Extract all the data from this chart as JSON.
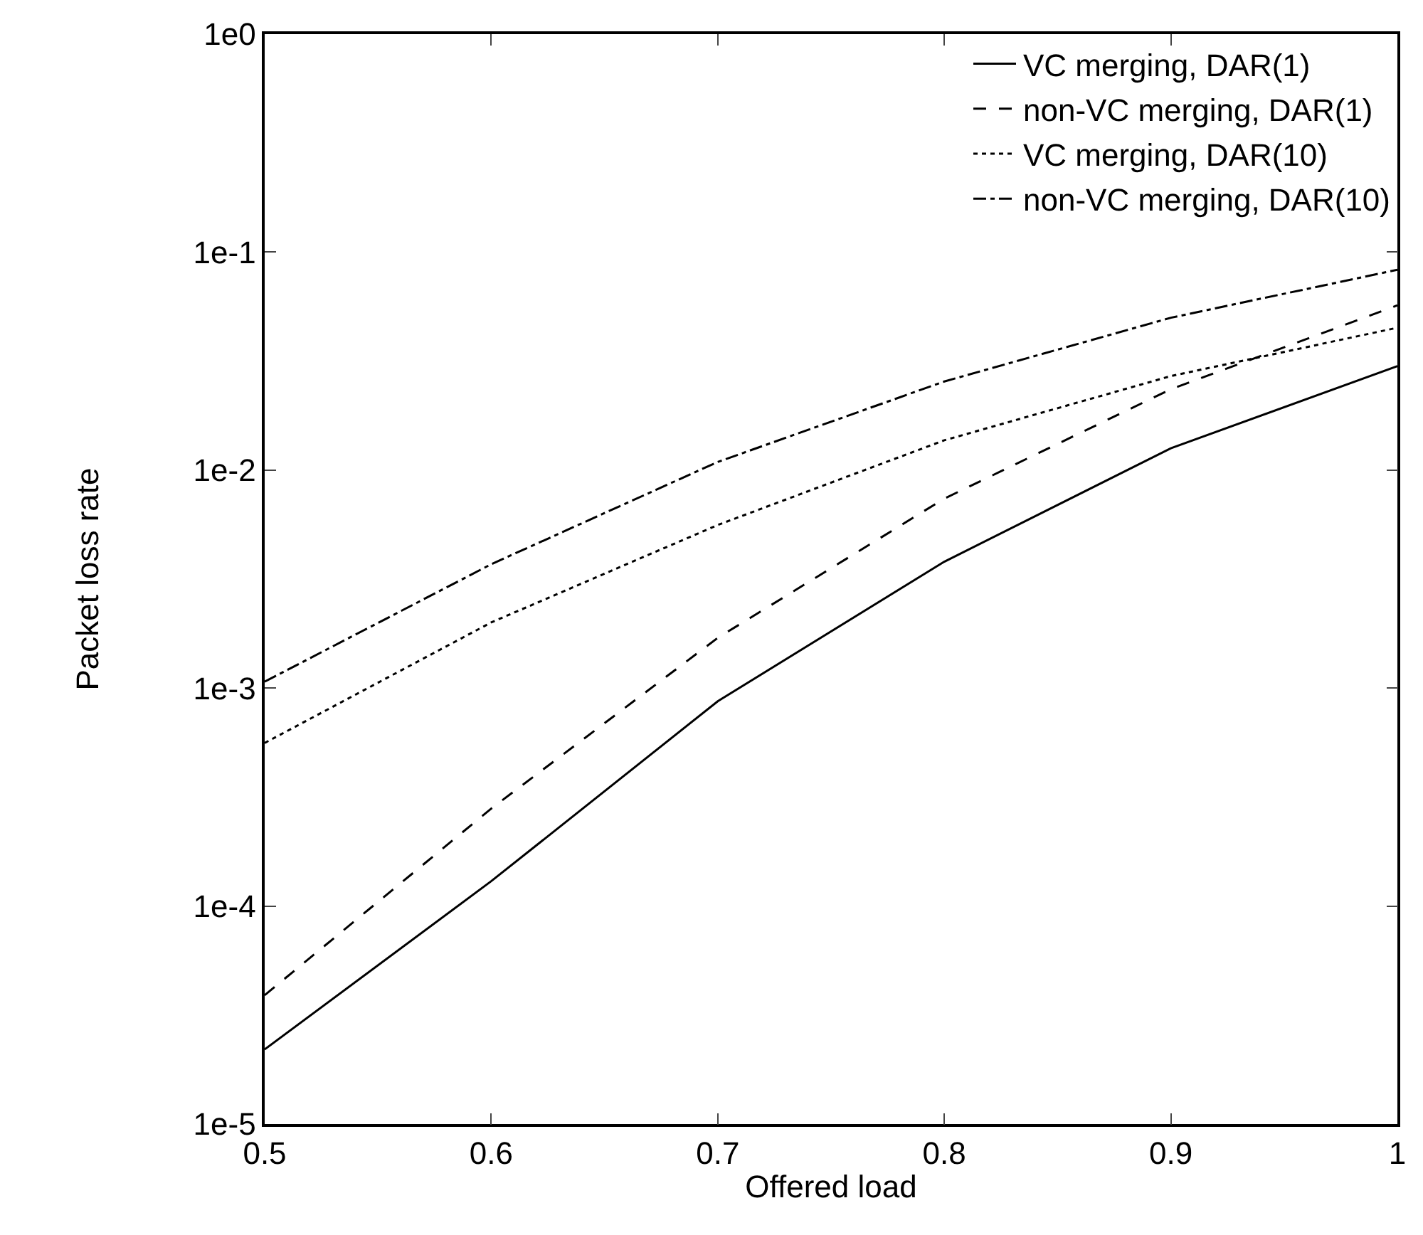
{
  "chart_data": {
    "type": "line",
    "xlabel": "Offered load",
    "ylabel": "Packet loss rate",
    "x": [
      0.5,
      0.6,
      0.7,
      0.8,
      0.9,
      1
    ],
    "series": [
      {
        "name": "VC merging, DAR(1)",
        "color": "#000000",
        "line_style": "solid",
        "values": [
          2.2e-05,
          0.00013,
          0.00087,
          0.0038,
          0.0126,
          0.03
        ]
      },
      {
        "name": "non-VC merging, DAR(1)",
        "color": "#000000",
        "line_style": "dashed",
        "values": [
          3.9e-05,
          0.00028,
          0.0017,
          0.0074,
          0.0235,
          0.057
        ]
      },
      {
        "name": "VC merging, DAR(10)",
        "color": "#000000",
        "line_style": "dotted",
        "values": [
          0.00056,
          0.002,
          0.0056,
          0.0137,
          0.027,
          0.045
        ]
      },
      {
        "name": "non-VC merging, DAR(10)",
        "color": "#000000",
        "line_style": "dashdot",
        "values": [
          0.00107,
          0.0037,
          0.0109,
          0.0255,
          0.05,
          0.083
        ]
      }
    ],
    "xlim": [
      0.5,
      1
    ],
    "xticks": [
      0.5,
      0.6,
      0.7,
      0.8,
      0.9,
      1
    ],
    "ylim": [
      1e-05,
      1
    ],
    "yticks": [
      {
        "value": 1e-05,
        "label": "1e-5"
      },
      {
        "value": 0.0001,
        "label": "1e-4"
      },
      {
        "value": 0.001,
        "label": "1e-3"
      },
      {
        "value": 0.01,
        "label": "1e-2"
      },
      {
        "value": 0.1,
        "label": "1e-1"
      },
      {
        "value": 1,
        "label": "1e0"
      }
    ],
    "log": "y",
    "grid": false,
    "legend": "top right",
    "marker": "none"
  }
}
